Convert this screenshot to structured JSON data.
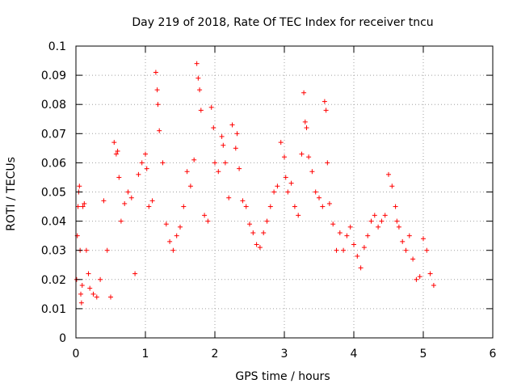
{
  "chart_data": {
    "type": "scatter",
    "title": "Day 219 of 2018, Rate Of TEC Index for receiver tncu",
    "xlabel": "GPS time / hours",
    "ylabel": "ROTI / TECUs",
    "xlim": [
      0,
      6
    ],
    "ylim": [
      0,
      0.1
    ],
    "xticks": [
      0,
      1,
      2,
      3,
      4,
      5,
      6
    ],
    "yticks": [
      0,
      0.01,
      0.02,
      0.03,
      0.04,
      0.05,
      0.06,
      0.07,
      0.08,
      0.09,
      0.1
    ],
    "xtick_labels": [
      "0",
      "1",
      "2",
      "3",
      "4",
      "5",
      "6"
    ],
    "ytick_labels": [
      "0",
      "0.01",
      "0.02",
      "0.03",
      "0.04",
      "0.05",
      "0.06",
      "0.07",
      "0.08",
      "0.09",
      "0.1"
    ],
    "grid": true,
    "marker": "+",
    "series_color": "#ff0000",
    "series": [
      {
        "name": "ROTI",
        "x": [
          0.01,
          0.02,
          0.03,
          0.04,
          0.05,
          0.06,
          0.07,
          0.08,
          0.09,
          0.1,
          0.12,
          0.15,
          0.18,
          0.2,
          0.25,
          0.3,
          0.35,
          0.4,
          0.45,
          0.5,
          0.55,
          0.58,
          0.6,
          0.62,
          0.65,
          0.7,
          0.75,
          0.8,
          0.85,
          0.9,
          0.95,
          1.0,
          1.02,
          1.05,
          1.1,
          1.15,
          1.17,
          1.18,
          1.2,
          1.25,
          1.3,
          1.35,
          1.4,
          1.45,
          1.5,
          1.55,
          1.6,
          1.65,
          1.7,
          1.74,
          1.76,
          1.78,
          1.8,
          1.85,
          1.9,
          1.95,
          1.98,
          2.0,
          2.05,
          2.1,
          2.12,
          2.15,
          2.2,
          2.25,
          2.3,
          2.32,
          2.35,
          2.4,
          2.45,
          2.5,
          2.55,
          2.6,
          2.65,
          2.7,
          2.75,
          2.8,
          2.85,
          2.9,
          2.95,
          3.0,
          3.02,
          3.05,
          3.1,
          3.15,
          3.2,
          3.25,
          3.28,
          3.3,
          3.32,
          3.35,
          3.4,
          3.45,
          3.5,
          3.55,
          3.58,
          3.6,
          3.62,
          3.65,
          3.7,
          3.75,
          3.8,
          3.85,
          3.9,
          3.95,
          4.0,
          4.05,
          4.1,
          4.15,
          4.2,
          4.25,
          4.3,
          4.35,
          4.4,
          4.45,
          4.5,
          4.55,
          4.6,
          4.62,
          4.65,
          4.7,
          4.75,
          4.8,
          4.85,
          4.9,
          4.95,
          5.0,
          5.05,
          5.1,
          5.15
        ],
        "y": [
          0.02,
          0.035,
          0.045,
          0.05,
          0.052,
          0.03,
          0.015,
          0.012,
          0.018,
          0.045,
          0.046,
          0.03,
          0.022,
          0.017,
          0.015,
          0.014,
          0.02,
          0.047,
          0.03,
          0.014,
          0.067,
          0.063,
          0.064,
          0.055,
          0.04,
          0.046,
          0.05,
          0.048,
          0.022,
          0.056,
          0.06,
          0.063,
          0.058,
          0.045,
          0.047,
          0.091,
          0.085,
          0.08,
          0.071,
          0.06,
          0.039,
          0.033,
          0.03,
          0.035,
          0.038,
          0.045,
          0.057,
          0.052,
          0.061,
          0.094,
          0.089,
          0.085,
          0.078,
          0.042,
          0.04,
          0.079,
          0.072,
          0.06,
          0.057,
          0.069,
          0.066,
          0.06,
          0.048,
          0.073,
          0.065,
          0.07,
          0.058,
          0.047,
          0.045,
          0.039,
          0.036,
          0.032,
          0.031,
          0.036,
          0.04,
          0.045,
          0.05,
          0.052,
          0.067,
          0.062,
          0.055,
          0.05,
          0.053,
          0.045,
          0.042,
          0.063,
          0.084,
          0.074,
          0.072,
          0.062,
          0.057,
          0.05,
          0.048,
          0.045,
          0.081,
          0.078,
          0.06,
          0.046,
          0.039,
          0.03,
          0.036,
          0.03,
          0.035,
          0.038,
          0.032,
          0.028,
          0.024,
          0.031,
          0.035,
          0.04,
          0.042,
          0.038,
          0.04,
          0.042,
          0.056,
          0.052,
          0.045,
          0.04,
          0.038,
          0.033,
          0.03,
          0.035,
          0.027,
          0.02,
          0.021,
          0.034,
          0.03,
          0.022,
          0.018
        ]
      }
    ]
  }
}
